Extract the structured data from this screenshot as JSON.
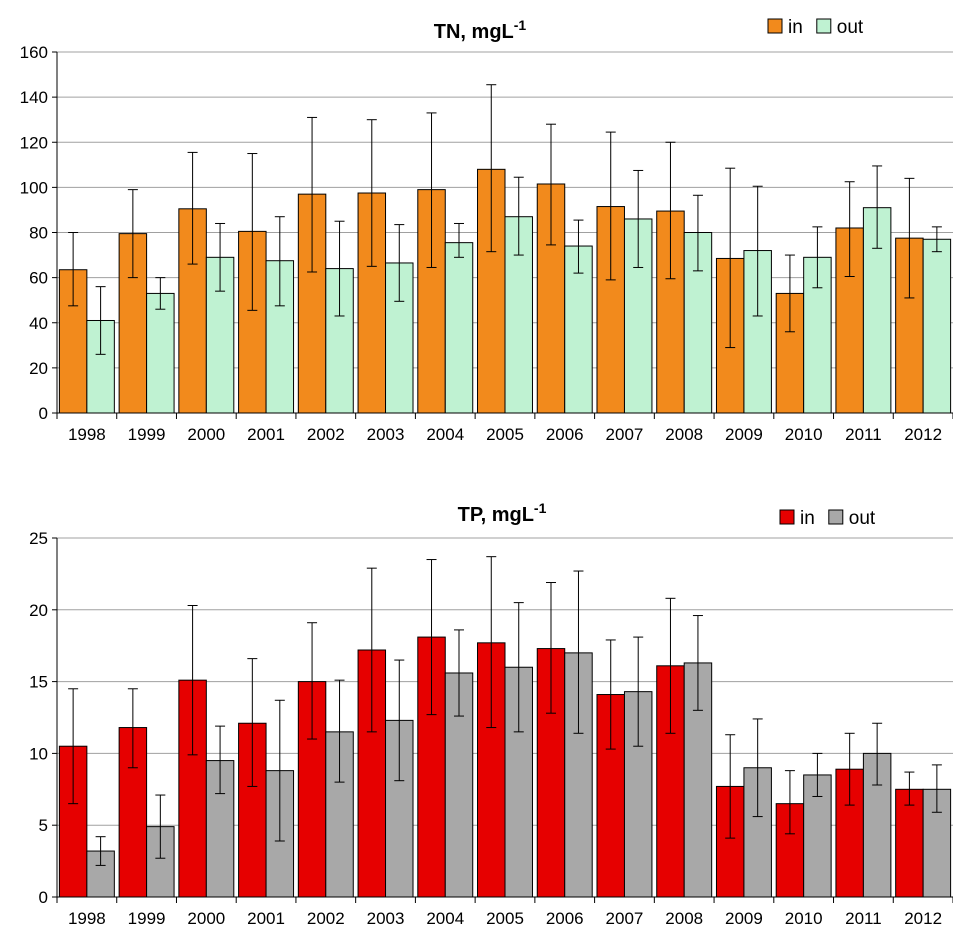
{
  "chart_data": [
    {
      "type": "bar",
      "title": "TN, mgL",
      "title_sup": "-1",
      "categories": [
        "1998",
        "1999",
        "2000",
        "2001",
        "2002",
        "2003",
        "2004",
        "2005",
        "2006",
        "2007",
        "2008",
        "2009",
        "2010",
        "2011",
        "2012"
      ],
      "series": [
        {
          "name": "in",
          "color": "#f28a1c",
          "values": [
            63.5,
            79.5,
            90.5,
            80.5,
            97,
            97.5,
            99,
            108,
            101.5,
            91.5,
            89.5,
            68.5,
            53,
            82,
            77.5
          ],
          "error_low": [
            47.5,
            60,
            66,
            45.5,
            62.5,
            65,
            64.5,
            71.5,
            74.5,
            59,
            59.5,
            29,
            36,
            60.5,
            51
          ],
          "error_high": [
            80,
            99,
            115.5,
            115,
            131,
            130,
            133,
            145.5,
            128,
            124.5,
            120,
            108.5,
            70,
            102.5,
            104
          ]
        },
        {
          "name": "out",
          "color": "#bff2d2",
          "values": [
            41,
            53,
            69,
            67.5,
            64,
            66.5,
            75.5,
            87,
            74,
            86,
            80,
            72,
            69,
            91,
            77
          ],
          "error_low": [
            26,
            46,
            54,
            47.5,
            43,
            49.5,
            69,
            70,
            62,
            64.5,
            63,
            43,
            55.5,
            73,
            71.5
          ],
          "error_high": [
            56,
            60,
            84,
            87,
            85,
            83.5,
            84,
            104.5,
            85.5,
            107.5,
            96.5,
            100.5,
            82.5,
            109.5,
            82.5
          ]
        }
      ],
      "ylim": [
        0,
        160
      ],
      "yticks": [
        0,
        20,
        40,
        60,
        80,
        100,
        120,
        140,
        160
      ],
      "grid": true,
      "legend": "top-right"
    },
    {
      "type": "bar",
      "title": "TP, mgL",
      "title_sup": "-1",
      "categories": [
        "1998",
        "1999",
        "2000",
        "2001",
        "2002",
        "2003",
        "2004",
        "2005",
        "2006",
        "2007",
        "2008",
        "2009",
        "2010",
        "2011",
        "2012"
      ],
      "series": [
        {
          "name": "in",
          "color": "#e60000",
          "values": [
            10.5,
            11.8,
            15.1,
            12.1,
            15.0,
            17.2,
            18.1,
            17.7,
            17.3,
            14.1,
            16.1,
            7.7,
            6.5,
            8.9,
            7.5
          ],
          "error_low": [
            6.5,
            9.0,
            9.9,
            7.7,
            11.0,
            11.5,
            12.7,
            11.8,
            12.8,
            10.3,
            11.4,
            4.1,
            4.4,
            6.4,
            6.4
          ],
          "error_high": [
            14.5,
            14.5,
            20.3,
            16.6,
            19.1,
            22.9,
            23.5,
            23.7,
            21.9,
            17.9,
            20.8,
            11.3,
            8.8,
            11.4,
            8.7
          ]
        },
        {
          "name": "out",
          "color": "#a8a8a8",
          "values": [
            3.2,
            4.9,
            9.5,
            8.8,
            11.5,
            12.3,
            15.6,
            16.0,
            17.0,
            14.3,
            16.3,
            9.0,
            8.5,
            10.0,
            7.5
          ],
          "error_low": [
            2.2,
            2.7,
            7.2,
            3.9,
            8.0,
            8.1,
            12.6,
            11.5,
            11.4,
            10.5,
            13.0,
            5.6,
            7.0,
            7.8,
            5.9
          ],
          "error_high": [
            4.2,
            7.1,
            11.9,
            13.7,
            15.1,
            16.5,
            18.6,
            20.5,
            22.7,
            18.1,
            19.6,
            12.4,
            10.0,
            12.1,
            9.2
          ]
        }
      ],
      "ylim": [
        0,
        25
      ],
      "yticks": [
        0,
        5,
        10,
        15,
        20,
        25
      ],
      "grid": true,
      "legend": "top-right"
    }
  ]
}
